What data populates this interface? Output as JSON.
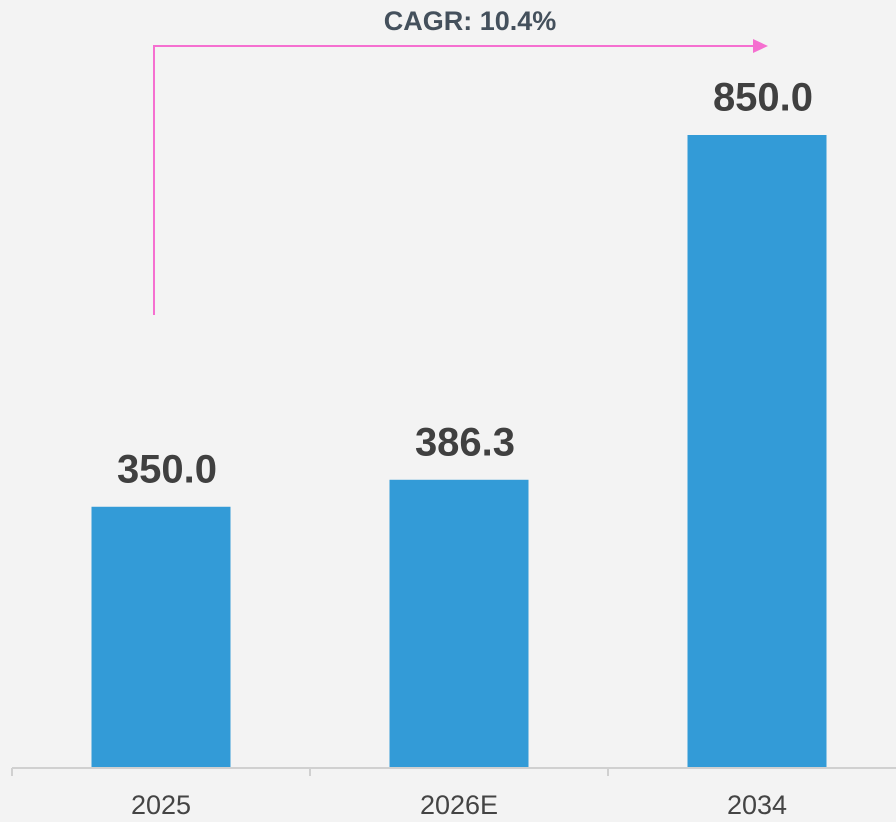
{
  "chart_data": {
    "type": "bar",
    "annotation": "CAGR: 10.4%",
    "categories": [
      "2025",
      "2026E",
      "2034"
    ],
    "values": [
      350,
      386.3,
      850
    ],
    "value_labels": [
      "350.0",
      "386.3",
      "850.0"
    ],
    "color": "#339bd7",
    "annotation_color": "#f56fd0"
  }
}
